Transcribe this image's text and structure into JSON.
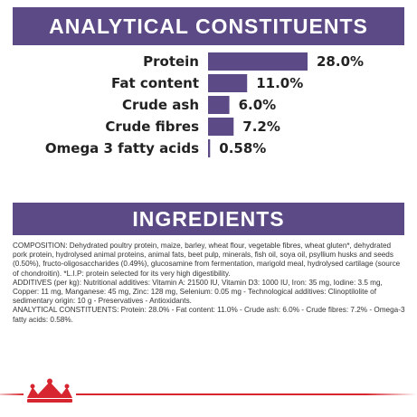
{
  "colors": {
    "banner_bg": "#5b4a86",
    "bar": "#5b4a86",
    "footer_line": "#d7262f"
  },
  "sections": {
    "constituents_title": "ANALYTICAL CONSTITUENTS",
    "ingredients_title": "INGREDIENTS"
  },
  "chart_data": {
    "type": "bar",
    "orientation": "horizontal",
    "title": "ANALYTICAL CONSTITUENTS",
    "categories": [
      "Protein",
      "Fat content",
      "Crude ash",
      "Crude fibres",
      "Omega 3 fatty acids"
    ],
    "values": [
      28.0,
      11.0,
      6.0,
      7.2,
      0.58
    ],
    "value_labels": [
      "28.0%",
      "11.0%",
      "6.0%",
      "7.2%",
      "0.58%"
    ],
    "unit": "%",
    "xlim": [
      0,
      28.0
    ],
    "grid": false,
    "legend": "none"
  },
  "ingredients": {
    "composition": "COMPOSITION: Dehydrated poultry protein, maize, barley, wheat flour, vegetable fibres, wheat gluten*, dehydrated pork protein, hydrolysed animal proteins, animal fats, beet pulp, minerals, fish oil, soya oil, psyllium husks and seeds (0.50%), fructo-oligosaccharides (0.49%), glucosamine from fermentation, marigold meal, hydrolysed cartilage (source of chondroitin). *L.I.P: protein selected for its very high digestibility.",
    "additives": "ADDITIVES (per kg): Nutritional additives: Vitamin A: 21500 IU, Vitamin D3: 1000 IU, Iron: 35 mg, Iodine: 3.5 mg, Copper: 11 mg, Manganese: 45 mg, Zinc: 128 mg, Selenium: 0.05 mg - Technological additives: Clinoptilolite of sedimentary origin: 10 g - Preservatives - Antioxidants.",
    "constituents": "ANALYTICAL CONSTITUENTS: Protein: 28.0% - Fat content: 11.0% - Crude ash: 6.0% - Crude fibres: 7.2% - Omega-3 fatty acids: 0.58%."
  },
  "footer": {
    "logo_icon": "crown-icon"
  }
}
